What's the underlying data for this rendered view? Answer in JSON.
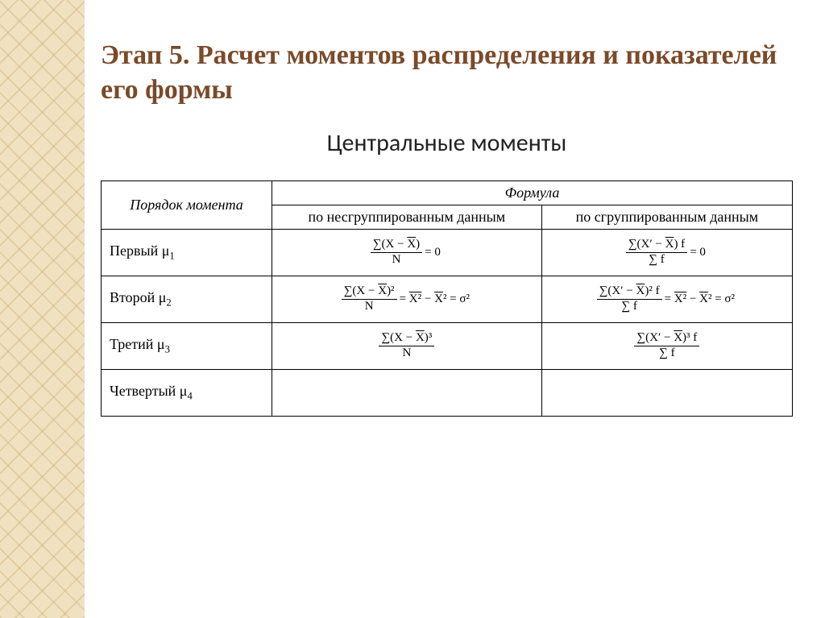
{
  "title": "Этап 5. Расчет моментов распределения и показателей его формы",
  "subtitle": "Центральные моменты",
  "colors": {
    "heading": "#7a4a2a",
    "sidebar_base": "#f0e2c0",
    "sidebar_pattern": "rgba(200,170,110,0.35)",
    "text": "#000000",
    "border": "#000000",
    "background": "#ffffff"
  },
  "table": {
    "row_header": "Порядок момента",
    "formula_header": "Формула",
    "col_ungrouped": "по несгруппированным данным",
    "col_grouped": "по сгруппированным данным",
    "rows": [
      {
        "label_text": "Первый ",
        "label_sym": "μ",
        "label_sub": "1",
        "ungrouped": {
          "num": "∑(X − X̄)",
          "den": "N",
          "tail": " = 0"
        },
        "grouped": {
          "num": "∑(X′ − X̄) f",
          "den": "∑ f",
          "tail": " = 0"
        }
      },
      {
        "label_text": "Второй ",
        "label_sym": "μ",
        "label_sub": "2",
        "ungrouped": {
          "num": "∑(X − X̄)²",
          "den": "N",
          "tail_html": " = <span class=\"ol\">X²</span> − <span class=\"ol\">X</span>² = σ²"
        },
        "grouped": {
          "num": "∑(X′ − X̄)² f",
          "den": "∑ f",
          "tail_html": " = <span class=\"ol\">X²</span> − <span class=\"ol\">X</span>² = σ²"
        }
      },
      {
        "label_text": "Третий ",
        "label_sym": "μ",
        "label_sub": "3",
        "ungrouped": {
          "num": "∑(X − X̄)³",
          "den": "N",
          "tail": ""
        },
        "grouped": {
          "num": "∑(X′ − X̄)³ f",
          "den": "∑ f",
          "tail": ""
        }
      },
      {
        "label_text": "Четвертый ",
        "label_sym": "μ",
        "label_sub": "4",
        "ungrouped": null,
        "grouped": null
      }
    ]
  }
}
